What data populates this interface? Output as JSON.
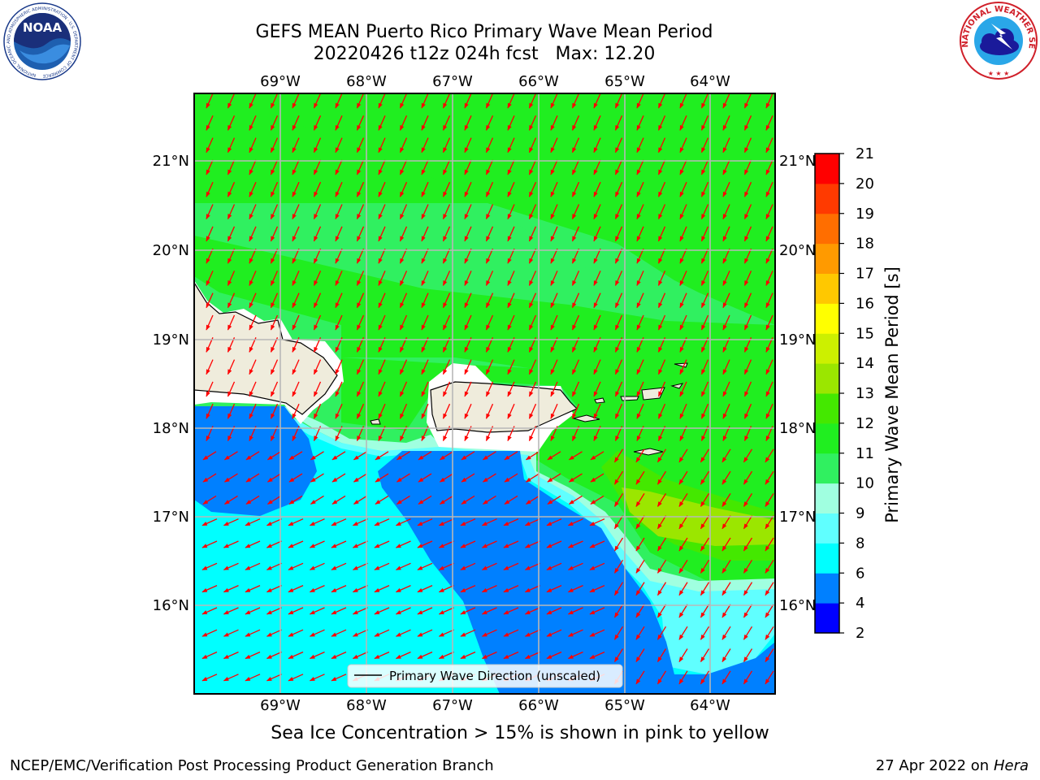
{
  "header": {
    "title_line1": "GEFS MEAN Puerto Rico Primary Wave Mean Period",
    "title_line2": "20220426 t12z 024h fcst   Max: 12.20"
  },
  "map": {
    "lon_labels": [
      "69°W",
      "68°W",
      "67°W",
      "66°W",
      "65°W",
      "64°W"
    ],
    "lat_labels": [
      "21°N",
      "20°N",
      "19°N",
      "18°N",
      "17°N",
      "16°N"
    ],
    "legend_label": "Primary Wave Direction (unscaled)",
    "arrow_color": "#ff0000",
    "land_color": "#efecdc"
  },
  "colorbar": {
    "label": "Primary Wave Mean Period [s]",
    "ticks": [
      "2",
      "4",
      "6",
      "8",
      "9",
      "10",
      "11",
      "12",
      "13",
      "14",
      "15",
      "16",
      "17",
      "18",
      "19",
      "20",
      "21"
    ],
    "levels": [
      {
        "from": 2,
        "to": 4,
        "color": "#0000ff"
      },
      {
        "from": 4,
        "to": 6,
        "color": "#0080ff"
      },
      {
        "from": 6,
        "to": 8,
        "color": "#00ffff"
      },
      {
        "from": 8,
        "to": 9,
        "color": "#60ffff"
      },
      {
        "from": 9,
        "to": 10,
        "color": "#a0ffe0"
      },
      {
        "from": 10,
        "to": 11,
        "color": "#30f060"
      },
      {
        "from": 11,
        "to": 12,
        "color": "#20ee20"
      },
      {
        "from": 12,
        "to": 13,
        "color": "#44e800"
      },
      {
        "from": 13,
        "to": 14,
        "color": "#9be600"
      },
      {
        "from": 14,
        "to": 15,
        "color": "#ccf000"
      },
      {
        "from": 15,
        "to": 16,
        "color": "#ffff00"
      },
      {
        "from": 16,
        "to": 17,
        "color": "#ffc800"
      },
      {
        "from": 17,
        "to": 18,
        "color": "#ff9a00"
      },
      {
        "from": 18,
        "to": 19,
        "color": "#ff6e00"
      },
      {
        "from": 19,
        "to": 20,
        "color": "#ff3a00"
      },
      {
        "from": 20,
        "to": 21,
        "color": "#ff0000"
      }
    ]
  },
  "caption": "Sea Ice Concentration > 15% is shown in pink to yellow",
  "footer": {
    "left": "NCEP/EMC/Verification Post Processing Product Generation Branch",
    "right_date": "27 Apr 2022 on ",
    "right_host": "Hera"
  },
  "logos": {
    "noaa_text": "NOAA",
    "noaa_icon": "noaa-logo-icon",
    "nws_ring_text": "NATIONAL WEATHER SERVICE",
    "nws_icon": "nws-logo-icon"
  }
}
